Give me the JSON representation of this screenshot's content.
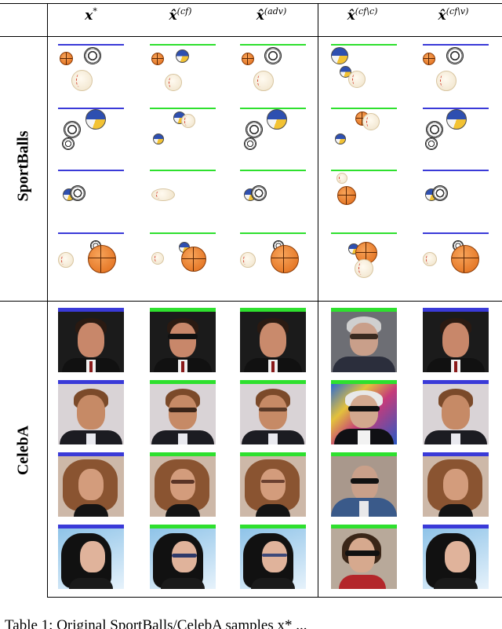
{
  "columns": [
    {
      "base": "x",
      "sup": "*"
    },
    {
      "base": "x̂",
      "sup": "(cf)"
    },
    {
      "base": "x̂",
      "sup": "(adv)"
    },
    {
      "base": "x̂",
      "sup": "(cf\\c)"
    },
    {
      "base": "x̂",
      "sup": "(cf\\v)"
    }
  ],
  "rows": {
    "sportballs_label": "SportBalls",
    "celeba_label": "CelebA"
  },
  "caption": "Table 1: Original SportBalls/CelebA samples x* ..."
}
